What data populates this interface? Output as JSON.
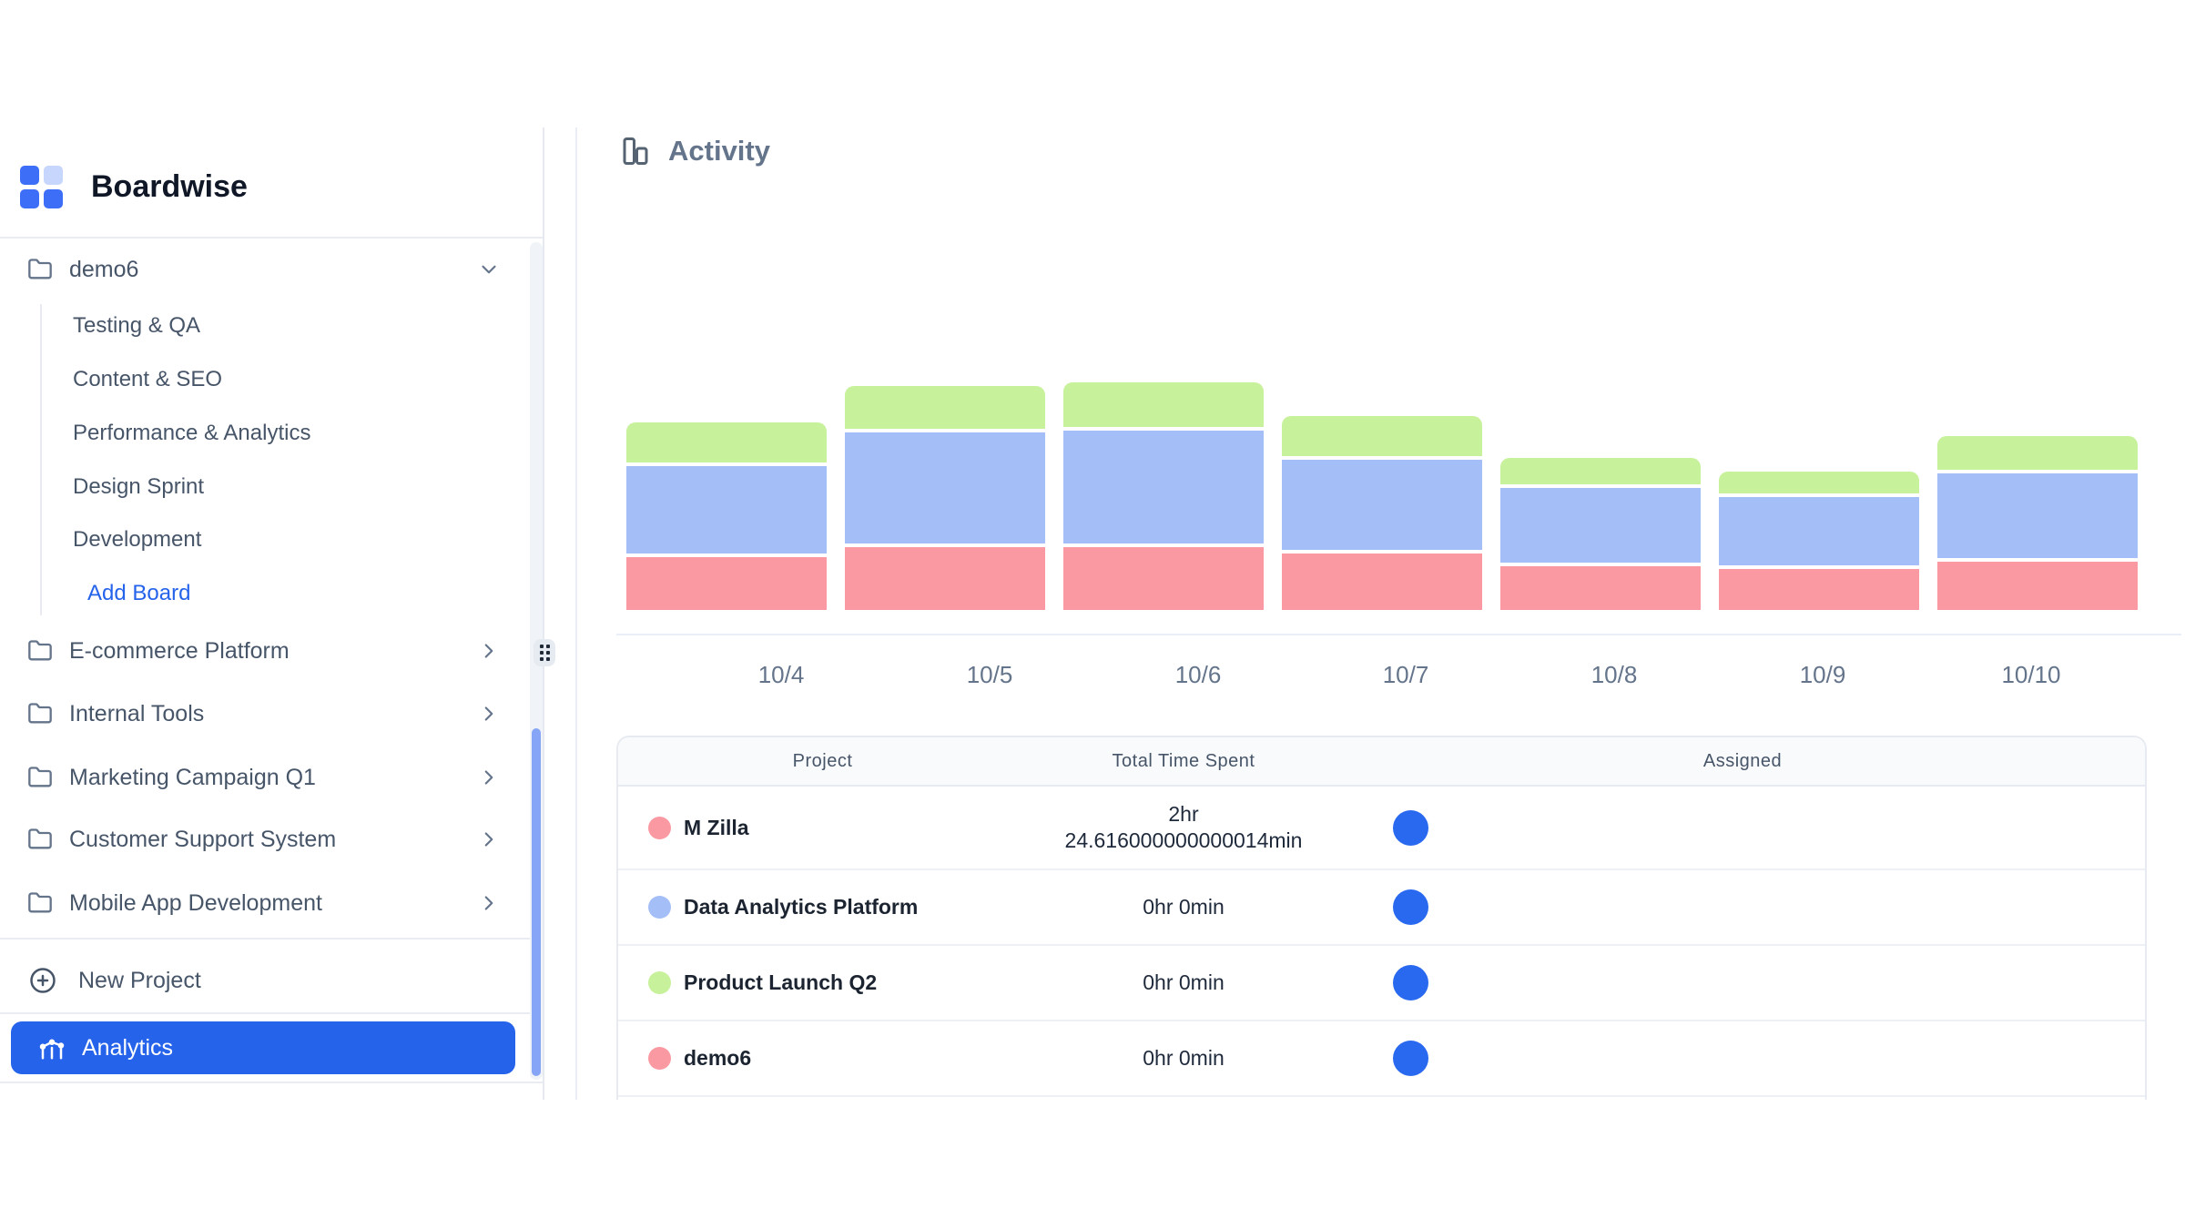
{
  "brand": {
    "name": "Boardwise"
  },
  "colors": {
    "accent": "#2563eb",
    "logo_blue": "#3d6ef7",
    "logo_light_blue": "#c7d6fc",
    "series_pink": "#fb99a2",
    "series_blue": "#a4bef8",
    "series_green": "#c8f19b",
    "avatar_blue": "#2969ef",
    "scrollbar_thumb": "#86a5f6"
  },
  "sidebar": {
    "project_group": {
      "label": "demo6",
      "expanded": true
    },
    "boards": [
      {
        "label": "Testing & QA"
      },
      {
        "label": "Content & SEO"
      },
      {
        "label": "Performance & Analytics"
      },
      {
        "label": "Design Sprint"
      },
      {
        "label": "Development"
      }
    ],
    "add_board_label": "Add Board",
    "projects": [
      {
        "label": "E-commerce Platform"
      },
      {
        "label": "Internal Tools"
      },
      {
        "label": "Marketing Campaign Q1"
      },
      {
        "label": "Customer Support System"
      },
      {
        "label": "Mobile App Development"
      }
    ],
    "new_project_label": "New Project",
    "analytics_label": "Analytics"
  },
  "main": {
    "title": "Activity"
  },
  "chart_data": {
    "type": "bar",
    "stacked": true,
    "categories": [
      "10/4",
      "10/5",
      "10/6",
      "10/7",
      "10/8",
      "10/9",
      "10/10"
    ],
    "series": [
      {
        "name": "M Zilla",
        "color": "#fb99a2",
        "values": [
          58,
          69,
          69,
          62,
          48,
          45,
          53
        ]
      },
      {
        "name": "Data Analytics Platform",
        "color": "#a4bef8",
        "values": [
          96,
          122,
          124,
          99,
          82,
          75,
          93
        ]
      },
      {
        "name": "Product Launch Q2",
        "color": "#c8f19b",
        "values": [
          44,
          47,
          49,
          44,
          29,
          24,
          37
        ]
      }
    ],
    "title": "Activity",
    "xlabel": "",
    "ylabel": "",
    "y_axis_shown": false,
    "grid": false,
    "legend": false,
    "value_unit": "relative height (no axis labels shown in UI)"
  },
  "table": {
    "columns": [
      "Project",
      "Total Time Spent",
      "Assigned"
    ],
    "rows": [
      {
        "project": "M Zilla",
        "dot_color": "#fb99a2",
        "time_lines": [
          "2hr",
          "24.616000000000014min"
        ],
        "assignee_color": "#2969ef"
      },
      {
        "project": "Data Analytics Platform",
        "dot_color": "#a4bef8",
        "time_lines": [
          "0hr 0min"
        ],
        "assignee_color": "#2969ef"
      },
      {
        "project": "Product Launch Q2",
        "dot_color": "#c8f19b",
        "time_lines": [
          "0hr 0min"
        ],
        "assignee_color": "#2969ef"
      },
      {
        "project": "demo6",
        "dot_color": "#fb99a2",
        "time_lines": [
          "0hr 0min"
        ],
        "assignee_color": "#2969ef"
      }
    ]
  }
}
